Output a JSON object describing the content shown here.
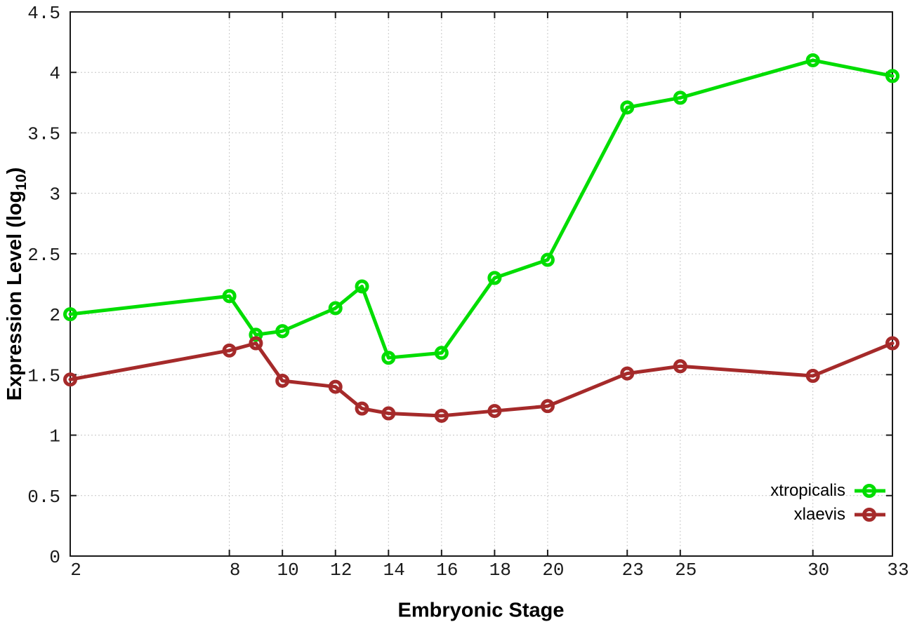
{
  "figure": {
    "xlabel": "Embryonic Stage",
    "ylabel_main": "Expression Level (log",
    "ylabel_sub": "10",
    "ylabel_close": ")"
  },
  "chart_data": {
    "type": "line",
    "x": [
      2,
      8,
      9,
      10,
      12,
      13,
      14,
      16,
      18,
      20,
      23,
      25,
      30,
      33
    ],
    "series": [
      {
        "name": "xtropicalis",
        "color": "#00dd00",
        "values": [
          2.0,
          2.15,
          1.83,
          1.86,
          2.05,
          2.23,
          1.64,
          1.68,
          2.3,
          2.45,
          3.71,
          3.79,
          4.1,
          3.97
        ]
      },
      {
        "name": "xlaevis",
        "color": "#a52a2a",
        "values": [
          1.46,
          1.7,
          1.76,
          1.45,
          1.4,
          1.22,
          1.18,
          1.16,
          1.2,
          1.24,
          1.51,
          1.57,
          1.49,
          1.76
        ]
      }
    ],
    "xlabel": "Embryonic Stage",
    "ylabel": "Expression Level (log10)",
    "xlim": [
      2,
      33
    ],
    "ylim": [
      0,
      4.5
    ],
    "xticks": [
      2,
      8,
      10,
      12,
      14,
      16,
      18,
      20,
      23,
      25,
      30,
      33
    ],
    "yticks": [
      0,
      0.5,
      1,
      1.5,
      2,
      2.5,
      3,
      3.5,
      4,
      4.5
    ],
    "grid": true,
    "legend_position": "bottom-right",
    "marker": "open-circle"
  }
}
